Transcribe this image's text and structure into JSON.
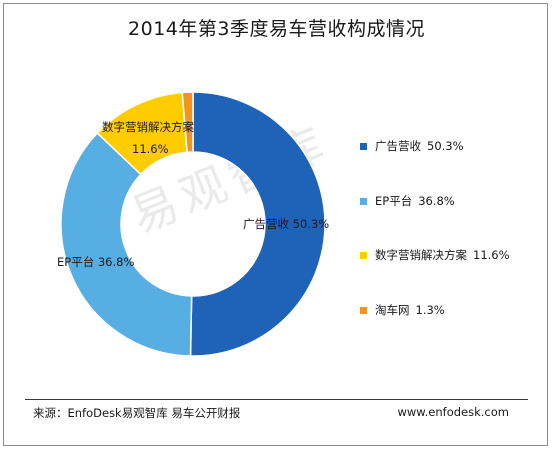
{
  "chart_data": {
    "type": "pie",
    "title": "2014年第3季度易车营收构成情况",
    "donut": true,
    "legend_position": "right",
    "categories": [
      "广告营收",
      "EP平台",
      "数字营销解决方案",
      "淘车网"
    ],
    "values": [
      50.3,
      36.8,
      11.6,
      1.3
    ],
    "value_labels": [
      "50.3%",
      "36.8%",
      "11.6%",
      "1.3%"
    ],
    "colors": [
      "#1f63b9",
      "#56aee2",
      "#ffcc00",
      "#f0961e"
    ]
  },
  "watermark": "易观智库",
  "footer": {
    "source": "来源：EnfoDesk易观智库 易车公开财报",
    "website": "www.enfodesk.com"
  }
}
